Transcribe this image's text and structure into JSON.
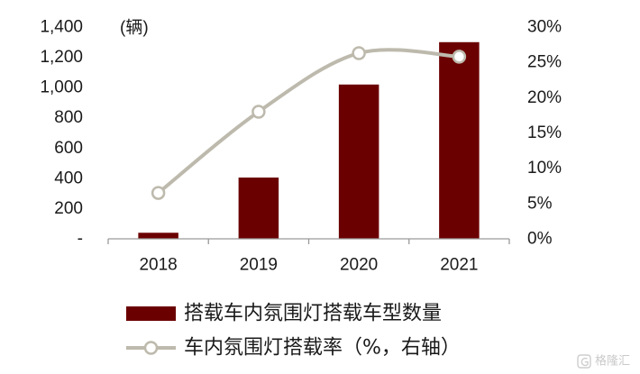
{
  "chart_data": {
    "type": "bar",
    "categories": [
      "2018",
      "2019",
      "2020",
      "2021"
    ],
    "series": [
      {
        "name": "搭载车内氛围灯搭载车型数量",
        "type": "bar",
        "axis": "left",
        "values": [
          40,
          405,
          1020,
          1300
        ],
        "color": "#6B0000"
      },
      {
        "name": "车内氛围灯搭载率（%，右轴）",
        "type": "line",
        "axis": "right",
        "smooth": true,
        "marker": "circle",
        "values": [
          6.5,
          18.0,
          26.3,
          25.8
        ],
        "color": "#BDBAAD"
      }
    ],
    "y_left": {
      "label": "(辆)",
      "min": 0,
      "max": 1400,
      "ticks": [
        0,
        200,
        400,
        600,
        800,
        1000,
        1200,
        1400
      ],
      "tick_labels": [
        "-",
        "200",
        "400",
        "600",
        "800",
        "1,000",
        "1,200",
        "1,400"
      ]
    },
    "y_right": {
      "min": 0,
      "max": 30,
      "ticks": [
        0,
        5,
        10,
        15,
        20,
        25,
        30
      ],
      "tick_labels": [
        "0%",
        "5%",
        "10%",
        "15%",
        "20%",
        "25%",
        "30%"
      ]
    },
    "grid": false,
    "legend": "bottom-left"
  },
  "watermark": {
    "text": "格隆汇"
  }
}
